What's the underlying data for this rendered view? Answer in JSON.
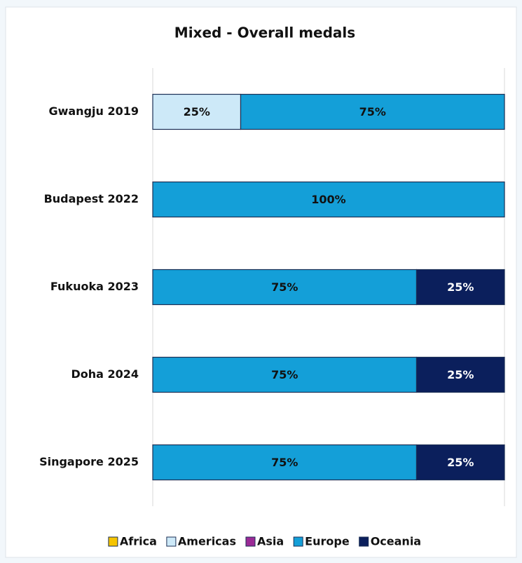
{
  "chart_data": {
    "type": "bar",
    "orientation": "horizontal",
    "stacked": true,
    "title": "Mixed - Overall medals",
    "categories": [
      "Gwangju 2019",
      "Budapest 2022",
      "Fukuoka 2023",
      "Doha 2024",
      "Singapore 2025"
    ],
    "series": [
      {
        "name": "Africa",
        "color": "#f5c400",
        "values": [
          0,
          0,
          0,
          0,
          0
        ],
        "value_labels": [
          null,
          null,
          null,
          null,
          null
        ]
      },
      {
        "name": "Americas",
        "color": "#cde9f8",
        "values": [
          25,
          0,
          0,
          0,
          0
        ],
        "value_labels": [
          "25%",
          null,
          null,
          null,
          null
        ]
      },
      {
        "name": "Asia",
        "color": "#9b2a96",
        "values": [
          0,
          0,
          0,
          0,
          0
        ],
        "value_labels": [
          null,
          null,
          null,
          null,
          null
        ]
      },
      {
        "name": "Europe",
        "color": "#149fd8",
        "values": [
          75,
          100,
          75,
          75,
          75
        ],
        "value_labels": [
          "75%",
          "100%",
          "75%",
          "75%",
          "75%"
        ]
      },
      {
        "name": "Oceania",
        "color": "#0b1f5c",
        "values": [
          0,
          0,
          25,
          25,
          25
        ],
        "value_labels": [
          null,
          null,
          "25%",
          "25%",
          "25%"
        ]
      }
    ],
    "xlim": [
      0,
      100
    ],
    "legend": "bottom"
  }
}
